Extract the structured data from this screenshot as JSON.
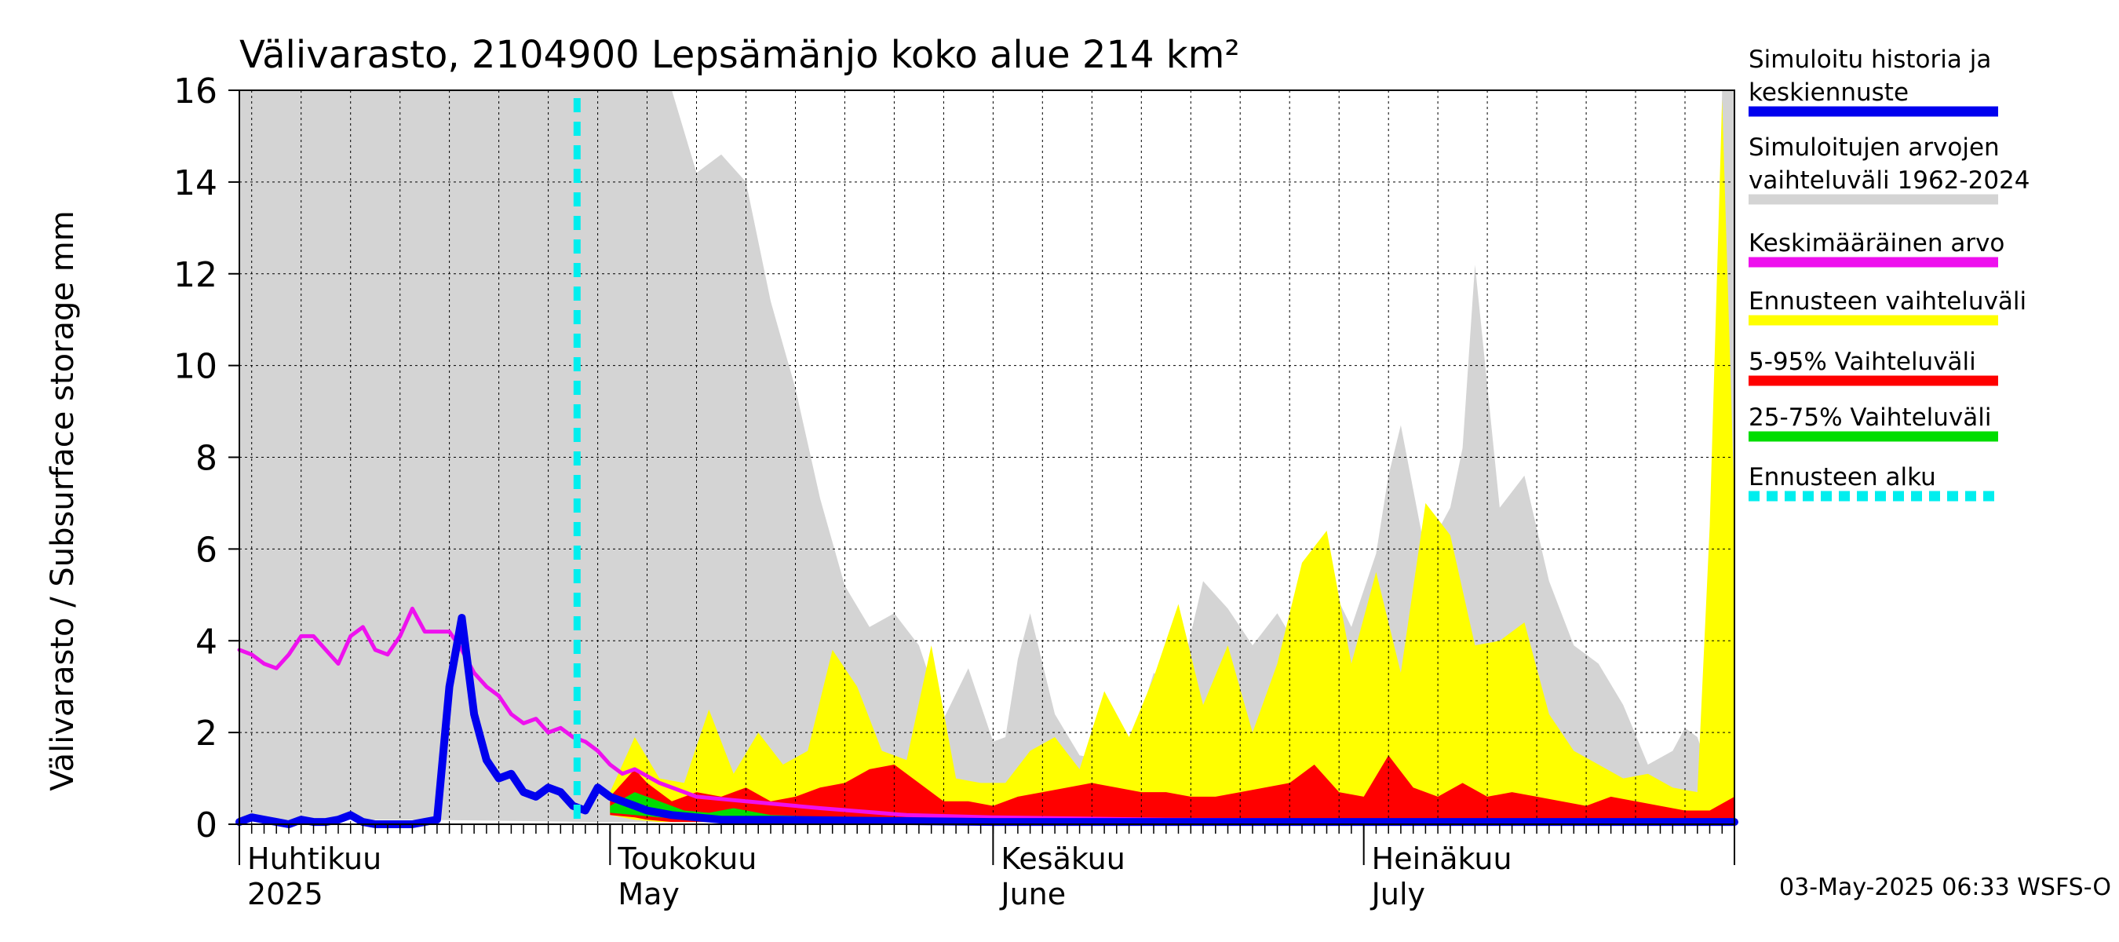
{
  "chart_data": {
    "type": "area",
    "title": "Välivarasto, 2104900 Lepsämänjo koko alue 214 km²",
    "ylabel": "Välivarasto / Subsurface storage  mm",
    "xlabel": "",
    "ylim": [
      0,
      16
    ],
    "yticks": [
      0,
      2,
      4,
      6,
      8,
      10,
      12,
      14,
      16
    ],
    "x_start": "2025-04-01",
    "x_end": "2025-07-31",
    "grid": true,
    "forecast_start": "2025-05-01",
    "month_labels": [
      {
        "date": "2025-04-01",
        "fi": "Huhtikuu",
        "en": "2025"
      },
      {
        "date": "2025-05-01",
        "fi": "Toukokuu",
        "en": "May"
      },
      {
        "date": "2025-06-01",
        "fi": "Kesäkuu",
        "en": "June"
      },
      {
        "date": "2025-07-01",
        "fi": "Heinäkuu",
        "en": "July"
      }
    ],
    "legend_position": "right",
    "series": [
      {
        "name": "Simuloitujen arvojen vaihteluväli 1962-2024",
        "kind": "band",
        "color": "#d4d4d4",
        "x": [
          "2025-04-01",
          "2025-04-15",
          "2025-04-30",
          "2025-05-05",
          "2025-05-06",
          "2025-05-08",
          "2025-05-10",
          "2025-05-12",
          "2025-05-14",
          "2025-05-16",
          "2025-05-18",
          "2025-05-20",
          "2025-05-22",
          "2025-05-24",
          "2025-05-26",
          "2025-05-28",
          "2025-05-30",
          "2025-06-01",
          "2025-06-02",
          "2025-06-03",
          "2025-06-04",
          "2025-06-06",
          "2025-06-08",
          "2025-06-10",
          "2025-06-12",
          "2025-06-14",
          "2025-06-16",
          "2025-06-18",
          "2025-06-20",
          "2025-06-22",
          "2025-06-24",
          "2025-06-26",
          "2025-06-28",
          "2025-06-30",
          "2025-07-02",
          "2025-07-03",
          "2025-07-04",
          "2025-07-06",
          "2025-07-08",
          "2025-07-09",
          "2025-07-10",
          "2025-07-12",
          "2025-07-14",
          "2025-07-16",
          "2025-07-18",
          "2025-07-20",
          "2025-07-22",
          "2025-07-24",
          "2025-07-26",
          "2025-07-27",
          "2025-07-28",
          "2025-07-29",
          "2025-07-30",
          "2025-07-31"
        ],
        "low": [
          0.1,
          0.1,
          0.05,
          0.05,
          0.05,
          0.05,
          0.05,
          0.05,
          0.05,
          0.05,
          0.05,
          0.05,
          0.05,
          0.05,
          0.05,
          0.05,
          0.05,
          0.05,
          0.05,
          0.05,
          0.05,
          0.05,
          0.05,
          0.05,
          0.05,
          0.05,
          0.05,
          0.05,
          0.05,
          0.05,
          0.05,
          0.05,
          0.05,
          0.05,
          0.05,
          0.05,
          0.05,
          0.05,
          0.05,
          0.05,
          0.05,
          0.05,
          0.05,
          0.05,
          0.05,
          0.05,
          0.05,
          0.05,
          0.05,
          0.05,
          0.05,
          0.05,
          0.05,
          0.05
        ],
        "high": [
          16,
          16,
          16,
          16,
          16,
          14.2,
          14.6,
          14.0,
          11.4,
          9.5,
          7.1,
          5.2,
          4.3,
          4.6,
          3.9,
          2.3,
          3.4,
          1.8,
          1.9,
          3.6,
          4.6,
          2.4,
          1.5,
          1.4,
          1.6,
          3.3,
          3.0,
          5.3,
          4.7,
          3.9,
          4.6,
          3.7,
          5.4,
          4.3,
          5.9,
          7.6,
          8.7,
          5.9,
          6.9,
          8.2,
          12.2,
          6.9,
          7.6,
          5.3,
          3.9,
          3.5,
          2.6,
          1.3,
          1.6,
          2.1,
          1.9,
          1.1,
          16,
          16
        ]
      },
      {
        "name": "Ennusteen vaihteluväli",
        "kind": "band",
        "color": "#ffff00",
        "x": [
          "2025-05-01",
          "2025-05-03",
          "2025-05-05",
          "2025-05-07",
          "2025-05-09",
          "2025-05-11",
          "2025-05-13",
          "2025-05-15",
          "2025-05-17",
          "2025-05-19",
          "2025-05-21",
          "2025-05-23",
          "2025-05-25",
          "2025-05-27",
          "2025-05-29",
          "2025-05-31",
          "2025-06-02",
          "2025-06-04",
          "2025-06-06",
          "2025-06-08",
          "2025-06-10",
          "2025-06-12",
          "2025-06-14",
          "2025-06-16",
          "2025-06-18",
          "2025-06-20",
          "2025-06-22",
          "2025-06-24",
          "2025-06-26",
          "2025-06-28",
          "2025-06-30",
          "2025-07-02",
          "2025-07-04",
          "2025-07-06",
          "2025-07-08",
          "2025-07-10",
          "2025-07-12",
          "2025-07-14",
          "2025-07-16",
          "2025-07-18",
          "2025-07-20",
          "2025-07-22",
          "2025-07-24",
          "2025-07-26",
          "2025-07-28",
          "2025-07-29",
          "2025-07-30",
          "2025-07-31"
        ],
        "low": [
          0.2,
          0.1,
          0.05,
          0.05,
          0.05,
          0.05,
          0.05,
          0.05,
          0.05,
          0.05,
          0.05,
          0.05,
          0.05,
          0.05,
          0.05,
          0.05,
          0.05,
          0.05,
          0.05,
          0.05,
          0.05,
          0.05,
          0.05,
          0.05,
          0.05,
          0.05,
          0.05,
          0.05,
          0.05,
          0.05,
          0.05,
          0.05,
          0.05,
          0.05,
          0.05,
          0.05,
          0.05,
          0.05,
          0.05,
          0.05,
          0.05,
          0.05,
          0.05,
          0.05,
          0.05,
          0.05,
          0.05,
          0.05
        ],
        "high": [
          0.7,
          1.9,
          1.0,
          0.9,
          2.5,
          1.1,
          2.0,
          1.3,
          1.6,
          3.8,
          3.0,
          1.6,
          1.4,
          3.9,
          1.0,
          0.9,
          0.9,
          1.6,
          1.9,
          1.2,
          2.9,
          1.9,
          3.2,
          4.8,
          2.6,
          3.9,
          2.0,
          3.5,
          5.7,
          6.4,
          3.5,
          5.5,
          3.3,
          7.0,
          6.3,
          3.9,
          4.0,
          4.4,
          2.4,
          1.6,
          1.3,
          1.0,
          1.1,
          0.8,
          0.7,
          6.5,
          15.8,
          7.0
        ]
      },
      {
        "name": "5-95% Vaihteluväli",
        "kind": "band",
        "color": "#ff0000",
        "x": [
          "2025-05-01",
          "2025-05-03",
          "2025-05-04",
          "2025-05-06",
          "2025-05-08",
          "2025-05-10",
          "2025-05-12",
          "2025-05-14",
          "2025-05-16",
          "2025-05-18",
          "2025-05-20",
          "2025-05-22",
          "2025-05-24",
          "2025-05-26",
          "2025-05-28",
          "2025-05-30",
          "2025-06-01",
          "2025-06-03",
          "2025-06-05",
          "2025-06-07",
          "2025-06-09",
          "2025-06-11",
          "2025-06-13",
          "2025-06-15",
          "2025-06-17",
          "2025-06-19",
          "2025-06-21",
          "2025-06-23",
          "2025-06-25",
          "2025-06-27",
          "2025-06-29",
          "2025-07-01",
          "2025-07-03",
          "2025-07-05",
          "2025-07-07",
          "2025-07-09",
          "2025-07-11",
          "2025-07-13",
          "2025-07-15",
          "2025-07-17",
          "2025-07-19",
          "2025-07-21",
          "2025-07-23",
          "2025-07-25",
          "2025-07-27",
          "2025-07-29",
          "2025-07-31"
        ],
        "low": [
          0.2,
          0.15,
          0.1,
          0.05,
          0.05,
          0.05,
          0.05,
          0.05,
          0.05,
          0.05,
          0.05,
          0.05,
          0.05,
          0.05,
          0.05,
          0.05,
          0.05,
          0.05,
          0.05,
          0.05,
          0.05,
          0.05,
          0.05,
          0.05,
          0.05,
          0.05,
          0.05,
          0.05,
          0.05,
          0.05,
          0.05,
          0.05,
          0.05,
          0.05,
          0.05,
          0.05,
          0.05,
          0.05,
          0.05,
          0.05,
          0.05,
          0.05,
          0.05,
          0.05,
          0.05,
          0.05,
          0.05
        ],
        "high": [
          0.6,
          1.2,
          0.9,
          0.5,
          0.7,
          0.6,
          0.8,
          0.5,
          0.6,
          0.8,
          0.9,
          1.2,
          1.3,
          0.9,
          0.5,
          0.5,
          0.4,
          0.6,
          0.7,
          0.8,
          0.9,
          0.8,
          0.7,
          0.7,
          0.6,
          0.6,
          0.7,
          0.8,
          0.9,
          1.3,
          0.7,
          0.6,
          1.5,
          0.8,
          0.6,
          0.9,
          0.6,
          0.7,
          0.6,
          0.5,
          0.4,
          0.6,
          0.5,
          0.4,
          0.3,
          0.3,
          0.6
        ]
      },
      {
        "name": "25-75% Vaihteluväli",
        "kind": "band",
        "color": "#00dd00",
        "x": [
          "2025-05-01",
          "2025-05-03",
          "2025-05-05",
          "2025-05-07",
          "2025-05-09",
          "2025-05-11",
          "2025-05-14",
          "2025-05-20",
          "2025-06-01",
          "2025-06-15",
          "2025-07-01",
          "2025-07-15",
          "2025-07-31"
        ],
        "low": [
          0.25,
          0.2,
          0.15,
          0.12,
          0.1,
          0.1,
          0.08,
          0.07,
          0.06,
          0.06,
          0.05,
          0.05,
          0.05
        ],
        "high": [
          0.4,
          0.7,
          0.5,
          0.3,
          0.25,
          0.35,
          0.2,
          0.15,
          0.12,
          0.12,
          0.1,
          0.1,
          0.1
        ]
      },
      {
        "name": "Keskimääräinen arvo",
        "kind": "line",
        "color": "#ee11ee",
        "x": [
          "2025-04-01",
          "2025-04-02",
          "2025-04-03",
          "2025-04-04",
          "2025-04-05",
          "2025-04-06",
          "2025-04-07",
          "2025-04-08",
          "2025-04-09",
          "2025-04-10",
          "2025-04-11",
          "2025-04-12",
          "2025-04-13",
          "2025-04-14",
          "2025-04-15",
          "2025-04-16",
          "2025-04-17",
          "2025-04-18",
          "2025-04-19",
          "2025-04-20",
          "2025-04-21",
          "2025-04-22",
          "2025-04-23",
          "2025-04-24",
          "2025-04-25",
          "2025-04-26",
          "2025-04-27",
          "2025-04-28",
          "2025-04-29",
          "2025-04-30",
          "2025-05-01",
          "2025-05-02",
          "2025-05-03",
          "2025-05-05",
          "2025-05-08",
          "2025-05-12",
          "2025-05-18",
          "2025-05-25",
          "2025-06-01",
          "2025-06-15",
          "2025-07-01",
          "2025-07-15",
          "2025-07-31"
        ],
        "values": [
          3.8,
          3.7,
          3.5,
          3.4,
          3.7,
          4.1,
          4.1,
          3.8,
          3.5,
          4.1,
          4.3,
          3.8,
          3.7,
          4.1,
          4.7,
          4.2,
          4.2,
          4.2,
          3.8,
          3.3,
          3.0,
          2.8,
          2.4,
          2.2,
          2.3,
          2.0,
          2.1,
          1.9,
          1.8,
          1.6,
          1.3,
          1.1,
          1.2,
          0.9,
          0.6,
          0.5,
          0.35,
          0.2,
          0.15,
          0.1,
          0.08,
          0.05,
          0.05
        ]
      },
      {
        "name": "Simuloitu historia ja keskiennuste",
        "kind": "line",
        "color": "#0000ee",
        "x": [
          "2025-04-01",
          "2025-04-02",
          "2025-04-03",
          "2025-04-04",
          "2025-04-05",
          "2025-04-06",
          "2025-04-07",
          "2025-04-08",
          "2025-04-09",
          "2025-04-10",
          "2025-04-11",
          "2025-04-12",
          "2025-04-13",
          "2025-04-14",
          "2025-04-15",
          "2025-04-16",
          "2025-04-17",
          "2025-04-18",
          "2025-04-19",
          "2025-04-20",
          "2025-04-21",
          "2025-04-22",
          "2025-04-23",
          "2025-04-24",
          "2025-04-25",
          "2025-04-26",
          "2025-04-27",
          "2025-04-28",
          "2025-04-29",
          "2025-04-30",
          "2025-05-01",
          "2025-05-02",
          "2025-05-03",
          "2025-05-04",
          "2025-05-06",
          "2025-05-08",
          "2025-05-10",
          "2025-05-12",
          "2025-05-15",
          "2025-05-20",
          "2025-06-01",
          "2025-06-15",
          "2025-07-01",
          "2025-07-15",
          "2025-07-31"
        ],
        "values": [
          0.05,
          0.15,
          0.1,
          0.05,
          0.0,
          0.1,
          0.05,
          0.05,
          0.1,
          0.2,
          0.05,
          0.0,
          0.0,
          0.0,
          0.0,
          0.05,
          0.1,
          3.0,
          4.5,
          2.4,
          1.4,
          1.0,
          1.1,
          0.7,
          0.6,
          0.8,
          0.7,
          0.4,
          0.3,
          0.8,
          0.6,
          0.5,
          0.4,
          0.3,
          0.2,
          0.15,
          0.1,
          0.1,
          0.1,
          0.08,
          0.05,
          0.05,
          0.05,
          0.05,
          0.05
        ]
      }
    ],
    "legend": [
      {
        "lines": [
          "Simuloitu historia ja",
          "keskiennuste"
        ],
        "color": "#0000ee",
        "style": "solid"
      },
      {
        "lines": [
          "Simuloitujen arvojen",
          "vaihteluväli 1962-2024"
        ],
        "color": "#d4d4d4",
        "style": "solid"
      },
      {
        "lines": [
          "Keskimääräinen arvo"
        ],
        "color": "#ee11ee",
        "style": "solid"
      },
      {
        "lines": [
          "Ennusteen vaihteluväli"
        ],
        "color": "#ffff00",
        "style": "solid"
      },
      {
        "lines": [
          "5-95% Vaihteluväli"
        ],
        "color": "#ff0000",
        "style": "solid"
      },
      {
        "lines": [
          "25-75% Vaihteluväli"
        ],
        "color": "#00dd00",
        "style": "solid"
      },
      {
        "lines": [
          "Ennusteen alku"
        ],
        "color": "#00eeee",
        "style": "dashed"
      }
    ],
    "footer": "03-May-2025 06:33 WSFS-O"
  }
}
